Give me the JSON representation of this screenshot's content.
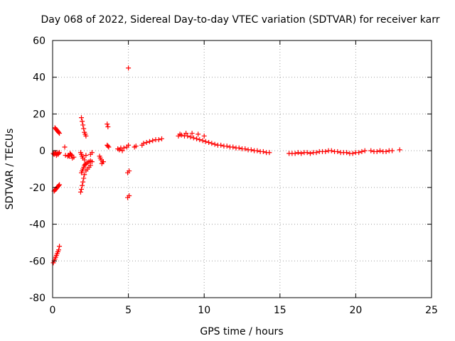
{
  "chart_data": {
    "type": "scatter",
    "title": "Day 068 of 2022, Sidereal Day-to-day VTEC variation (SDTVAR) for receiver karr",
    "xlabel": "GPS time / hours",
    "ylabel": "SDTVAR / TECUs",
    "xlim": [
      0,
      25
    ],
    "ylim": [
      -80,
      60
    ],
    "xticks": [
      0,
      5,
      10,
      15,
      20,
      25
    ],
    "yticks": [
      -80,
      -60,
      -40,
      -20,
      0,
      20,
      40,
      60
    ],
    "grid": true,
    "marker": "plus",
    "color": "#ff0000",
    "series": [
      {
        "name": "SDTVAR",
        "x": [
          0.05,
          0.1,
          0.15,
          0.2,
          0.25,
          0.3,
          0.35,
          0.4,
          0.45,
          0.15,
          0.2,
          0.25,
          0.3,
          0.35,
          0.4,
          0.45,
          0.1,
          0.15,
          0.2,
          0.25,
          0.3,
          0.35,
          0.4,
          0.45,
          0.05,
          0.1,
          0.15,
          0.2,
          0.25,
          0.3,
          0.35,
          0.4,
          0.45,
          0.8,
          0.85,
          1.1,
          1.2,
          1.3,
          1.4,
          1.15,
          1.25,
          1.0,
          1.05,
          1.9,
          1.95,
          2.0,
          2.05,
          2.1,
          2.15,
          2.2,
          1.85,
          1.9,
          1.95,
          2.0,
          2.1,
          2.2,
          1.85,
          1.9,
          1.95,
          2.0,
          2.05,
          2.1,
          2.2,
          2.3,
          2.4,
          2.5,
          1.9,
          1.95,
          2.0,
          2.05,
          2.1,
          2.15,
          2.2,
          2.3,
          2.4,
          2.5,
          2.6,
          2.6,
          2.5,
          3.1,
          3.2,
          3.3,
          3.15,
          3.25,
          3.35,
          3.6,
          3.65,
          3.7,
          3.6,
          3.65,
          4.3,
          4.4,
          4.5,
          4.6,
          4.7,
          4.9,
          5.0,
          5.0,
          4.95,
          5.05,
          4.95,
          5.05,
          5.4,
          5.5,
          5.9,
          6.0,
          6.2,
          6.4,
          6.6,
          6.8,
          7.0,
          7.2,
          8.3,
          8.5,
          8.7,
          8.9,
          9.1,
          9.3,
          9.5,
          9.7,
          9.9,
          10.1,
          10.3,
          10.5,
          10.7,
          10.9,
          11.1,
          11.3,
          11.5,
          11.7,
          11.9,
          12.1,
          12.3,
          12.5,
          12.7,
          12.9,
          13.1,
          13.3,
          13.5,
          13.7,
          13.9,
          14.1,
          14.3,
          8.4,
          8.8,
          9.2,
          9.6,
          10.0,
          15.6,
          15.8,
          16.0,
          16.2,
          16.4,
          16.6,
          16.8,
          17.0,
          17.2,
          17.4,
          17.6,
          17.8,
          18.0,
          18.2,
          18.4,
          18.6,
          18.8,
          19.0,
          19.2,
          19.4,
          19.6,
          19.8,
          20.0,
          20.2,
          20.4,
          20.6,
          21.0,
          21.2,
          21.4,
          21.6,
          21.8,
          22.0,
          22.2,
          22.4,
          22.9
        ],
        "y": [
          -1.5,
          -2.0,
          -1.0,
          -1.5,
          -2.5,
          -1.0,
          -2.0,
          -1.5,
          -1.0,
          12.5,
          12.0,
          11.5,
          11.0,
          10.5,
          10.0,
          9.5,
          -22.0,
          -21.5,
          -21.0,
          -20.5,
          -20.0,
          -19.5,
          -19.0,
          -18.5,
          -61.0,
          -60.0,
          -59.0,
          -58.0,
          -57.0,
          -56.0,
          -55.0,
          -54.0,
          -52.0,
          2.0,
          -2.5,
          -3.0,
          -2.0,
          -4.0,
          -3.5,
          -1.5,
          -2.5,
          -3.0,
          -2.5,
          18.0,
          16.0,
          14.0,
          12.0,
          10.0,
          9.0,
          8.0,
          -1.0,
          -2.0,
          -3.0,
          -4.0,
          -5.0,
          -2.5,
          -22.5,
          -21.0,
          -19.0,
          -17.0,
          -15.0,
          -13.0,
          -11.0,
          -10.0,
          -9.0,
          -8.0,
          -12.0,
          -11.0,
          -10.0,
          -9.0,
          -8.0,
          -7.5,
          -7.0,
          -6.5,
          -6.0,
          -5.5,
          -6.0,
          -1.0,
          -2.0,
          -3.0,
          -5.0,
          -6.0,
          -4.0,
          -7.0,
          -6.0,
          3.0,
          2.5,
          2.0,
          14.5,
          13.0,
          1.0,
          0.5,
          1.5,
          0.0,
          1.5,
          2.0,
          3.0,
          45.0,
          -12.0,
          -11.0,
          -25.5,
          -24.5,
          2.0,
          2.5,
          3.0,
          4.0,
          4.5,
          5.0,
          5.5,
          6.0,
          6.0,
          6.5,
          8.0,
          8.5,
          8.0,
          8.0,
          7.5,
          7.0,
          6.5,
          6.0,
          5.5,
          5.0,
          4.5,
          4.0,
          3.5,
          3.0,
          3.0,
          2.5,
          2.5,
          2.0,
          2.0,
          1.5,
          1.5,
          1.0,
          1.0,
          0.5,
          0.5,
          0.0,
          0.0,
          -0.5,
          -0.5,
          -1.0,
          -1.0,
          9.0,
          9.5,
          9.5,
          9.0,
          8.0,
          -1.5,
          -1.5,
          -1.5,
          -1.0,
          -1.5,
          -1.0,
          -1.0,
          -1.5,
          -1.0,
          -1.0,
          -0.5,
          -0.5,
          -0.5,
          0.0,
          0.0,
          -0.5,
          -0.5,
          -1.0,
          -1.0,
          -1.0,
          -1.5,
          -1.5,
          -1.0,
          -1.0,
          -0.5,
          0.0,
          0.0,
          -0.5,
          -0.5,
          0.0,
          -0.5,
          -0.5,
          0.0,
          0.0,
          0.5
        ]
      }
    ]
  }
}
